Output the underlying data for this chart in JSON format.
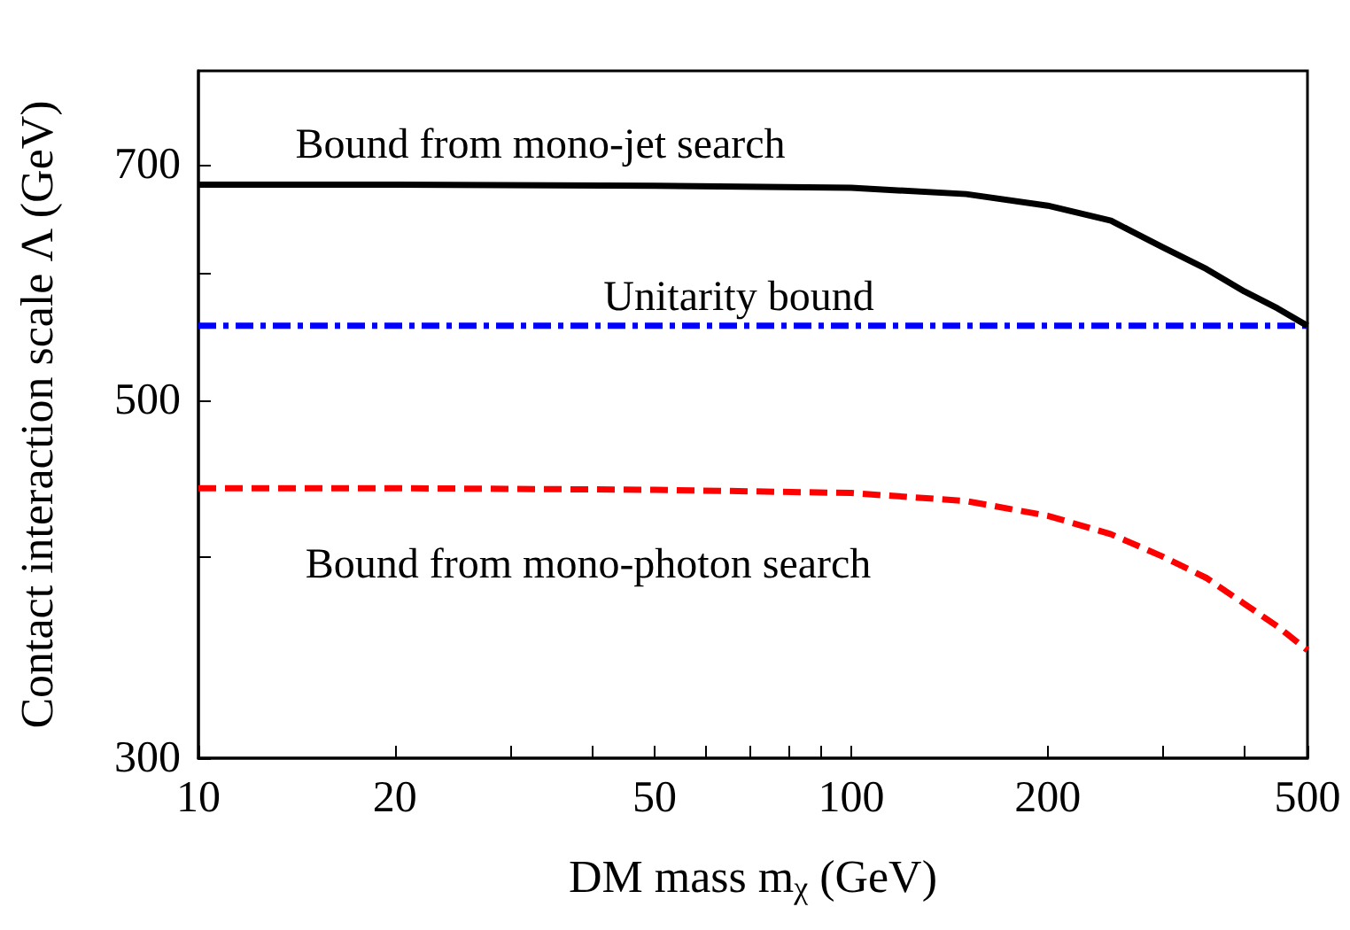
{
  "chart_data": {
    "type": "line",
    "xlabel": "DM mass m$_{χ}$ (GeV)",
    "ylabel": "Contact interaction scale Λ (GeV)",
    "log": "xy",
    "grid": false,
    "marker": "none",
    "x": [
      10,
      20,
      50,
      100,
      150,
      200,
      250,
      300,
      350,
      400,
      450,
      500
    ],
    "series": [
      {
        "color": "#000000",
        "line_style": "solid",
        "values": [
          680,
          680,
          679,
          677,
          671,
          660,
          646,
          622,
          603,
          584,
          570,
          556
        ]
      },
      {
        "color": "#0000ff",
        "line_style": "dashdot",
        "values": [
          556,
          556,
          556,
          556,
          556,
          556,
          556,
          556,
          556,
          556,
          556,
          556
        ]
      },
      {
        "color": "#ff0000",
        "line_style": "dashed",
        "values": [
          441,
          441,
          440,
          438,
          433,
          424,
          413,
          400,
          388,
          374,
          362,
          350
        ]
      }
    ],
    "xlim": [
      10,
      500
    ],
    "ylim": [
      300,
      800
    ],
    "xticks": [
      10,
      20,
      {
        "value": 30,
        "label": null
      },
      {
        "value": 40,
        "label": null
      },
      50,
      {
        "value": 60,
        "label": null
      },
      {
        "value": 70,
        "label": null
      },
      {
        "value": 80,
        "label": null
      },
      {
        "value": 90,
        "label": null
      },
      100,
      200,
      {
        "value": 300,
        "label": null
      },
      {
        "value": 400,
        "label": null
      },
      500
    ],
    "yticks": [
      300,
      {
        "value": 400,
        "label": null
      },
      500,
      {
        "value": 600,
        "label": null
      },
      700
    ],
    "annotations": [
      "Bound from mono-jet search",
      "Unitarity bound",
      "Bound from mono-photon search"
    ]
  }
}
